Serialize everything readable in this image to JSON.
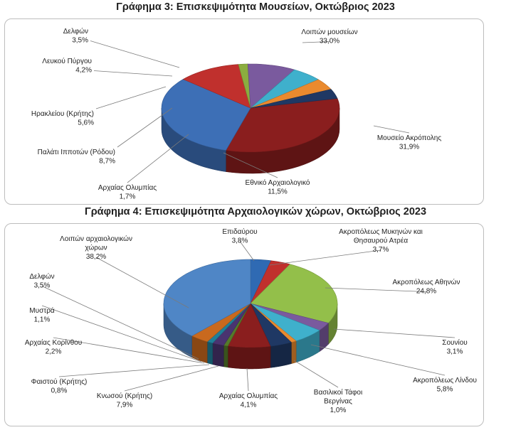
{
  "chart_data": [
    {
      "type": "pie",
      "title": "Γράφημα 3: Επισκεψιμότητα Μουσείων, Οκτώβριος 2023",
      "slices": [
        {
          "label": "Λοιπών μουσείων",
          "value": 33.0,
          "value_label": "33,0%",
          "color": "#8a1e1e"
        },
        {
          "label": "Μουσείο Ακρόπολης",
          "value": 31.9,
          "value_label": "31,9%",
          "color": "#3d6fb6"
        },
        {
          "label": "Εθνικό Αρχαιολογικό",
          "value": 11.5,
          "value_label": "11,5%",
          "color": "#c0302d"
        },
        {
          "label": "Αρχαίας Ολυμπίας",
          "value": 1.7,
          "value_label": "1,7%",
          "color": "#8bad3f"
        },
        {
          "label": "Παλάτι Ιπποτών (Ρόδου)",
          "value": 8.7,
          "value_label": "8,7%",
          "color": "#7a5a9e"
        },
        {
          "label": "Ηρακλείου (Κρήτης)",
          "value": 5.6,
          "value_label": "5,6%",
          "color": "#3fb0cc"
        },
        {
          "label": "Λευκού Πύργου",
          "value": 4.2,
          "value_label": "4,2%",
          "color": "#ea8a2e"
        },
        {
          "label": "Δελφών",
          "value": 3.5,
          "value_label": "3,5%",
          "color": "#1f3864"
        }
      ]
    },
    {
      "type": "pie",
      "title": "Γράφημα 4: Επισκεψιμότητα Αρχαιολογικών χώρων, Οκτώβριος 2023",
      "slices": [
        {
          "label": "Επιδαύρου",
          "value": 3.8,
          "value_label": "3,8%",
          "color": "#2f6ab3"
        },
        {
          "label": "Ακροπόλεως Μυκηνών και Θησαυρού Ατρέα",
          "value": 3.7,
          "value_label": "3,7%",
          "color": "#c0302d"
        },
        {
          "label": "Ακροπόλεως Αθηνών",
          "value": 24.8,
          "value_label": "24,8%",
          "color": "#93bf4a"
        },
        {
          "label": "Σουνίου",
          "value": 3.1,
          "value_label": "3,1%",
          "color": "#7a5a9e"
        },
        {
          "label": "Ακροπόλεως Λίνδου",
          "value": 5.8,
          "value_label": "5,8%",
          "color": "#3fb0cc"
        },
        {
          "label": "Βασιλικοί Τάφοι Βεργίνας",
          "value": 1.0,
          "value_label": "1,0%",
          "color": "#ea8a2e"
        },
        {
          "label": "Αρχαίας Ολυμπίας",
          "value": 4.1,
          "value_label": "4,1%",
          "color": "#1f3864"
        },
        {
          "label": "Κνωσού (Κρήτης)",
          "value": 7.9,
          "value_label": "7,9%",
          "color": "#8a1e1e"
        },
        {
          "label": "Φαιστού (Κρήτης)",
          "value": 0.8,
          "value_label": "0,8%",
          "color": "#557a2a"
        },
        {
          "label": "Αρχαίας Κορίνθου",
          "value": 2.2,
          "value_label": "2,2%",
          "color": "#4a3370"
        },
        {
          "label": "Μυστρά",
          "value": 1.1,
          "value_label": "1,1%",
          "color": "#1f7f99"
        },
        {
          "label": "Δελφών",
          "value": 3.5,
          "value_label": "3,5%",
          "color": "#c9691e"
        },
        {
          "label": "Λοιπών αρχαιολογικών χώρων",
          "value": 38.2,
          "value_label": "38,2%",
          "color": "#4f86c6"
        }
      ]
    }
  ]
}
